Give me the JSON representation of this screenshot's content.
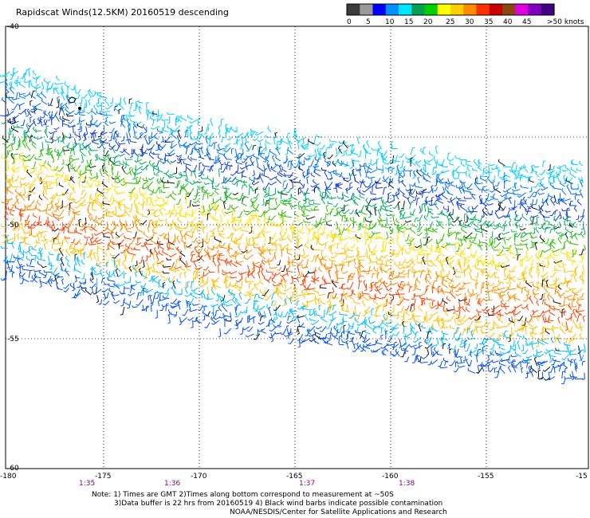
{
  "title": "Rapidscat Winds(12.5KM) 20160519 descending",
  "legend": {
    "colors": [
      "#3c3c3c",
      "#9a9a9a",
      "#0000ff",
      "#0090ff",
      "#00e5ff",
      "#00a050",
      "#00d000",
      "#ffff00",
      "#ffd000",
      "#ff8c00",
      "#ff3000",
      "#c80000",
      "#8b4513",
      "#e000e0",
      "#8000c0",
      "#400080"
    ],
    "tick_labels": [
      "0",
      "5",
      "10",
      "15",
      "20",
      "25",
      "30",
      "35",
      "40",
      "45",
      ">50 knots"
    ]
  },
  "map": {
    "lon_labels": [
      "-180",
      "-175",
      "-170",
      "-165",
      "-160",
      "-155",
      "-15"
    ],
    "lat_labels": [
      "-40",
      "45",
      "-50",
      "-55",
      "-60"
    ],
    "times": [
      "1:35",
      "1:36",
      "1:37",
      "1:38"
    ]
  },
  "notes": {
    "line1": "Note: 1) Times are GMT 2)Times along bottom correspond to measurement at ~50S",
    "line2": "3)Data buffer is 22 hrs from 20160519 4) Black wind barbs indicate possible contamination",
    "line3": "NOAA/NESDIS/Center for Satellite Applications and Research"
  }
}
